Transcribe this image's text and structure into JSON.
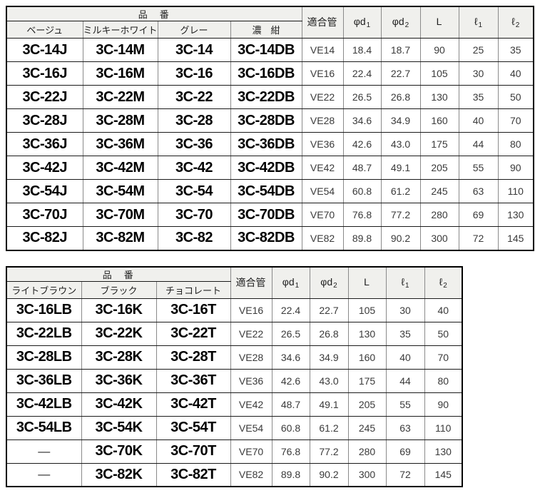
{
  "colors": {
    "header_bg": "#f0f0ed",
    "border_outer": "#000000",
    "border_horizontal": "#1a1a1a",
    "border_vertical": "#8a8a8a",
    "code_text": "#000000",
    "value_text": "#3a3a3a"
  },
  "tables": [
    {
      "name": "upper-product-table",
      "group_header": "品　番",
      "color_columns": [
        "ベージュ",
        "ミルキーホワイト",
        "グレー",
        "濃　紺"
      ],
      "spec_columns": [
        {
          "main": "適合管",
          "sub": ""
        },
        {
          "main": "φd",
          "sub": "1"
        },
        {
          "main": "φd",
          "sub": "2"
        },
        {
          "main": "L",
          "sub": ""
        },
        {
          "main": "ℓ",
          "sub": "1"
        },
        {
          "main": "ℓ",
          "sub": "2"
        }
      ],
      "rows": [
        {
          "codes": [
            "3C-14J",
            "3C-14M",
            "3C-14",
            "3C-14DB"
          ],
          "specs": [
            "VE14",
            "18.4",
            "18.7",
            "90",
            "25",
            "35"
          ]
        },
        {
          "codes": [
            "3C-16J",
            "3C-16M",
            "3C-16",
            "3C-16DB"
          ],
          "specs": [
            "VE16",
            "22.4",
            "22.7",
            "105",
            "30",
            "40"
          ]
        },
        {
          "codes": [
            "3C-22J",
            "3C-22M",
            "3C-22",
            "3C-22DB"
          ],
          "specs": [
            "VE22",
            "26.5",
            "26.8",
            "130",
            "35",
            "50"
          ]
        },
        {
          "codes": [
            "3C-28J",
            "3C-28M",
            "3C-28",
            "3C-28DB"
          ],
          "specs": [
            "VE28",
            "34.6",
            "34.9",
            "160",
            "40",
            "70"
          ]
        },
        {
          "codes": [
            "3C-36J",
            "3C-36M",
            "3C-36",
            "3C-36DB"
          ],
          "specs": [
            "VE36",
            "42.6",
            "43.0",
            "175",
            "44",
            "80"
          ]
        },
        {
          "codes": [
            "3C-42J",
            "3C-42M",
            "3C-42",
            "3C-42DB"
          ],
          "specs": [
            "VE42",
            "48.7",
            "49.1",
            "205",
            "55",
            "90"
          ]
        },
        {
          "codes": [
            "3C-54J",
            "3C-54M",
            "3C-54",
            "3C-54DB"
          ],
          "specs": [
            "VE54",
            "60.8",
            "61.2",
            "245",
            "63",
            "110"
          ]
        },
        {
          "codes": [
            "3C-70J",
            "3C-70M",
            "3C-70",
            "3C-70DB"
          ],
          "specs": [
            "VE70",
            "76.8",
            "77.2",
            "280",
            "69",
            "130"
          ]
        },
        {
          "codes": [
            "3C-82J",
            "3C-82M",
            "3C-82",
            "3C-82DB"
          ],
          "specs": [
            "VE82",
            "89.8",
            "90.2",
            "300",
            "72",
            "145"
          ]
        }
      ]
    },
    {
      "name": "lower-product-table",
      "group_header": "品　番",
      "color_columns": [
        "ライトブラウン",
        "ブラック",
        "チョコレート"
      ],
      "spec_columns": [
        {
          "main": "適合管",
          "sub": ""
        },
        {
          "main": "φd",
          "sub": "1"
        },
        {
          "main": "φd",
          "sub": "2"
        },
        {
          "main": "L",
          "sub": ""
        },
        {
          "main": "ℓ",
          "sub": "1"
        },
        {
          "main": "ℓ",
          "sub": "2"
        }
      ],
      "rows": [
        {
          "codes": [
            "3C-16LB",
            "3C-16K",
            "3C-16T"
          ],
          "specs": [
            "VE16",
            "22.4",
            "22.7",
            "105",
            "30",
            "40"
          ]
        },
        {
          "codes": [
            "3C-22LB",
            "3C-22K",
            "3C-22T"
          ],
          "specs": [
            "VE22",
            "26.5",
            "26.8",
            "130",
            "35",
            "50"
          ]
        },
        {
          "codes": [
            "3C-28LB",
            "3C-28K",
            "3C-28T"
          ],
          "specs": [
            "VE28",
            "34.6",
            "34.9",
            "160",
            "40",
            "70"
          ]
        },
        {
          "codes": [
            "3C-36LB",
            "3C-36K",
            "3C-36T"
          ],
          "specs": [
            "VE36",
            "42.6",
            "43.0",
            "175",
            "44",
            "80"
          ]
        },
        {
          "codes": [
            "3C-42LB",
            "3C-42K",
            "3C-42T"
          ],
          "specs": [
            "VE42",
            "48.7",
            "49.1",
            "205",
            "55",
            "90"
          ]
        },
        {
          "codes": [
            "3C-54LB",
            "3C-54K",
            "3C-54T"
          ],
          "specs": [
            "VE54",
            "60.8",
            "61.2",
            "245",
            "63",
            "110"
          ]
        },
        {
          "codes": [
            "—",
            "3C-70K",
            "3C-70T"
          ],
          "specs": [
            "VE70",
            "76.8",
            "77.2",
            "280",
            "69",
            "130"
          ]
        },
        {
          "codes": [
            "—",
            "3C-82K",
            "3C-82T"
          ],
          "specs": [
            "VE82",
            "89.8",
            "90.2",
            "300",
            "72",
            "145"
          ]
        }
      ]
    }
  ]
}
